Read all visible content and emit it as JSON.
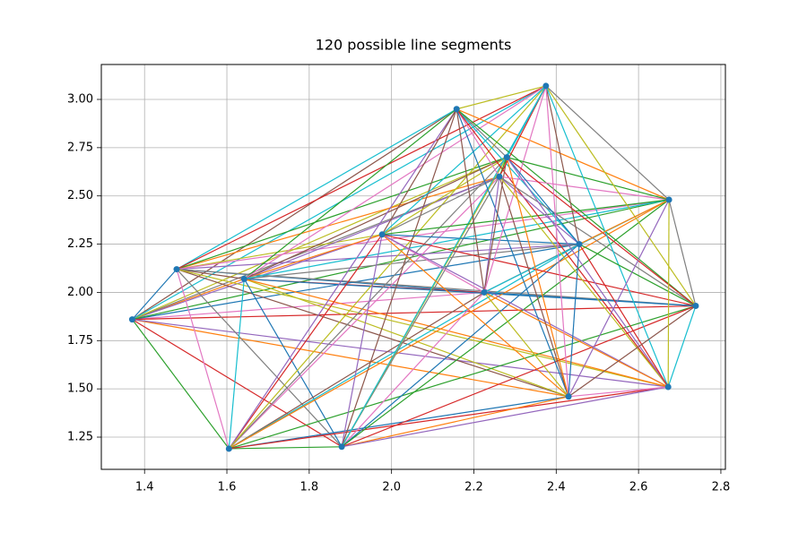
{
  "chart_data": {
    "type": "segments",
    "title": "120 possible line segments",
    "x": [
      1.37,
      1.478,
      1.642,
      1.605,
      1.879,
      1.977,
      2.158,
      2.225,
      2.262,
      2.28,
      2.375,
      2.456,
      2.43,
      2.674,
      2.739,
      2.672
    ],
    "y": [
      1.86,
      2.12,
      2.07,
      1.19,
      1.2,
      2.3,
      2.95,
      2.0,
      2.6,
      2.7,
      3.07,
      2.25,
      1.46,
      2.48,
      1.93,
      1.51
    ],
    "point_color": "#1f77b4",
    "colors": [
      "#1f77b4",
      "#ff7f0e",
      "#2ca02c",
      "#d62728",
      "#9467bd",
      "#8c564b",
      "#e377c2",
      "#7f7f7f",
      "#bcbd22",
      "#17becf"
    ],
    "xlim": [
      1.295,
      2.811
    ],
    "ylim": [
      1.083,
      3.181
    ],
    "xticks": [
      1.4,
      1.6,
      1.8,
      {
        "value": 2,
        "label": "2.0"
      },
      2.2,
      2.4,
      2.6,
      2.8
    ],
    "yticks": [
      1.25,
      {
        "value": 1.5,
        "label": "1.50"
      },
      1.75,
      {
        "value": 2,
        "label": "2.00"
      },
      2.25,
      {
        "value": 2.5,
        "label": "2.50"
      },
      2.75,
      {
        "value": 3,
        "label": "3.00"
      }
    ],
    "grid": true
  }
}
